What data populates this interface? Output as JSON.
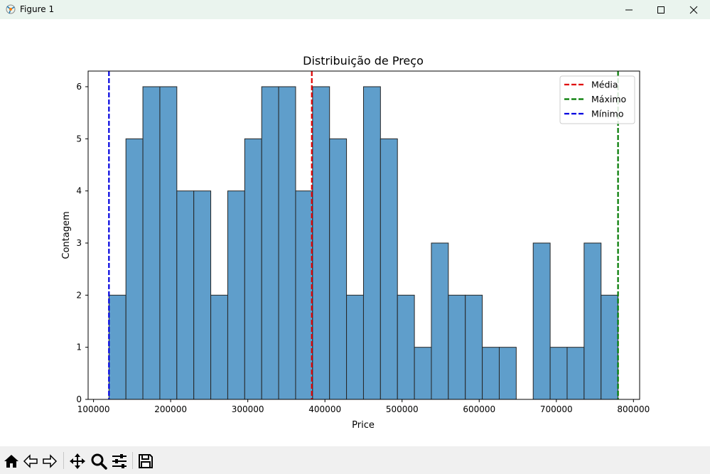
{
  "window": {
    "title": "Figure 1",
    "icons": [
      "app-icon",
      "minimize-icon",
      "maximize-icon",
      "close-icon"
    ]
  },
  "toolbar": {
    "buttons": [
      "home-icon",
      "back-icon",
      "forward-icon",
      "pan-icon",
      "zoom-icon",
      "configure-subplots-icon",
      "save-icon"
    ]
  },
  "chart_data": {
    "type": "bar",
    "title": "Distribuição de Preço",
    "xlabel": "Price",
    "ylabel": "Contagem",
    "xlim": [
      93000,
      808000
    ],
    "ylim": [
      0,
      6.3
    ],
    "x_ticks": [
      100000,
      200000,
      300000,
      400000,
      500000,
      600000,
      700000,
      800000
    ],
    "y_ticks": [
      0,
      1,
      2,
      3,
      4,
      5,
      6
    ],
    "bin_start": 120000,
    "bin_end": 780000,
    "counts": [
      2,
      5,
      6,
      6,
      4,
      4,
      2,
      4,
      5,
      6,
      6,
      4,
      6,
      5,
      2,
      6,
      5,
      2,
      1,
      3,
      2,
      2,
      1,
      1,
      0,
      3,
      1,
      1,
      3,
      2
    ],
    "bar_color": "#5f9ecb",
    "edge_color": "#262626",
    "grid": false,
    "lines": [
      {
        "name": "Média",
        "x": 383000,
        "color": "#e00000",
        "style": "dashed"
      },
      {
        "name": "Máximo",
        "x": 780000,
        "color": "#007a00",
        "style": "dashed"
      },
      {
        "name": "Mínimo",
        "x": 120000,
        "color": "#0000e0",
        "style": "dashed"
      }
    ],
    "legend_position": "top-right"
  }
}
